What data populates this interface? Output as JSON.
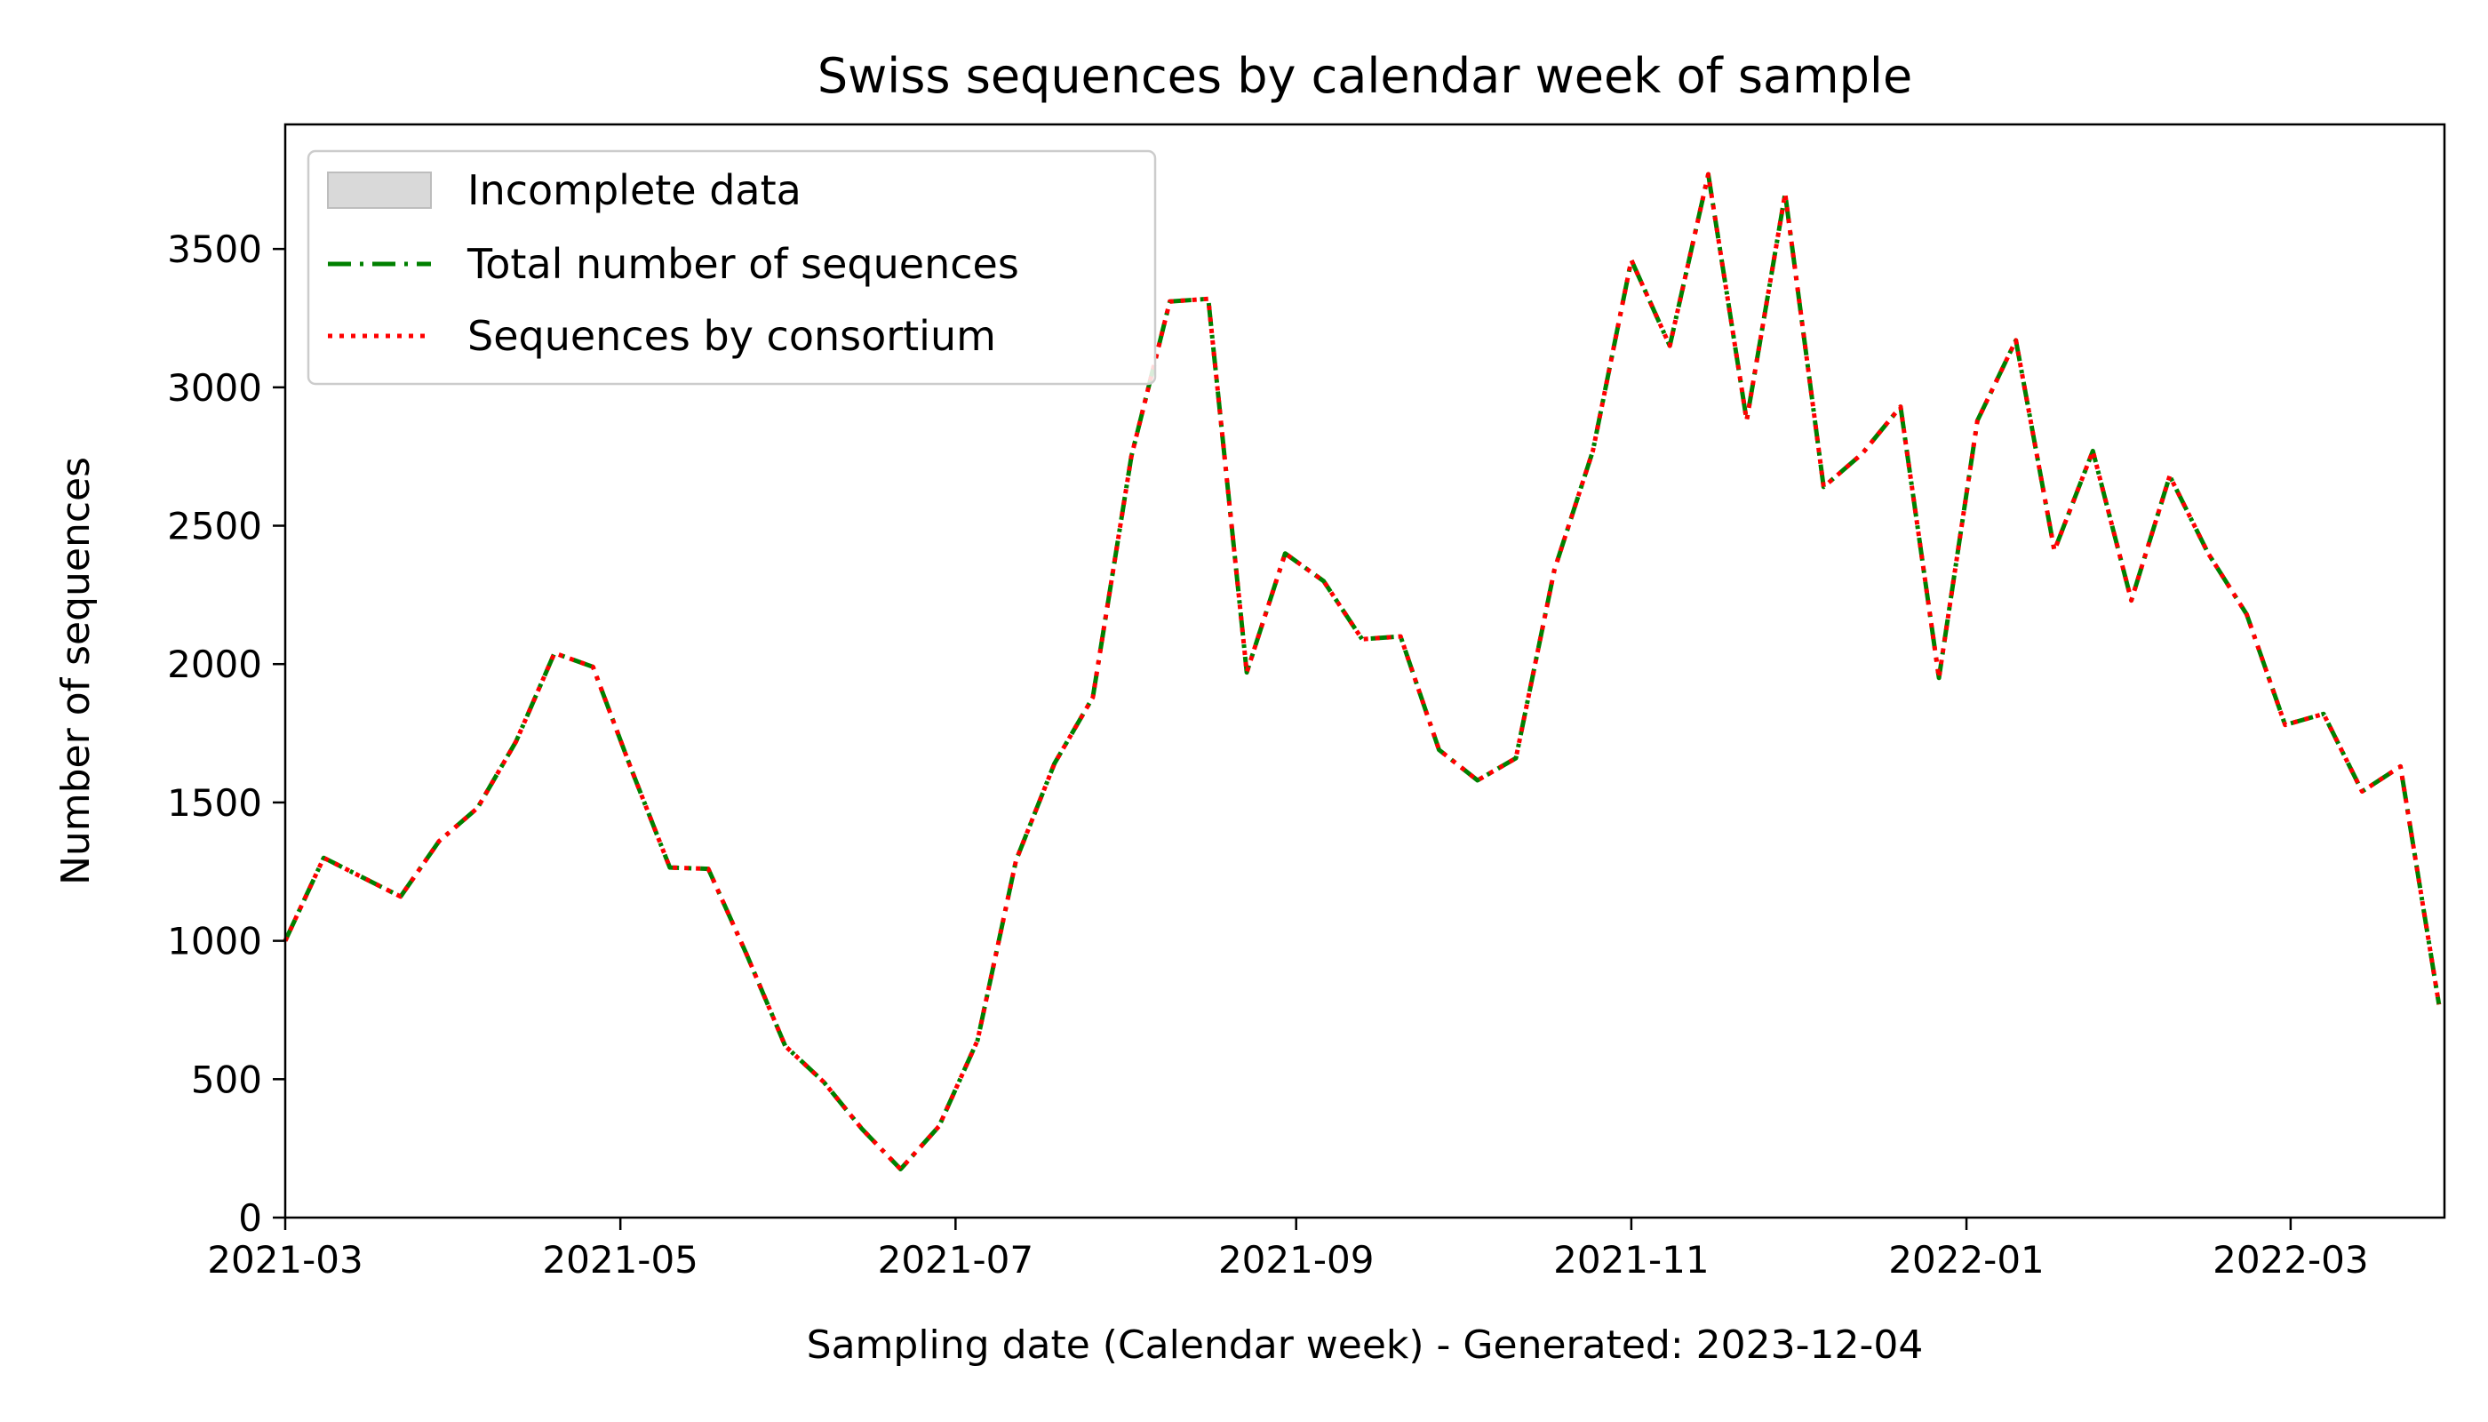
{
  "chart_data": {
    "type": "line",
    "title": "Swiss sequences by calendar week of sample",
    "xlabel": "Sampling date (Calendar week) - Generated: 2023-12-04",
    "ylabel": "Number of sequences",
    "x_start": "2021-03-01",
    "x_end": "2022-03-29",
    "ylim": [
      0,
      3950
    ],
    "x_ticks": [
      {
        "label": "2021-03",
        "date": "2021-03-01"
      },
      {
        "label": "2021-05",
        "date": "2021-05-01"
      },
      {
        "label": "2021-07",
        "date": "2021-07-01"
      },
      {
        "label": "2021-09",
        "date": "2021-09-01"
      },
      {
        "label": "2021-11",
        "date": "2021-11-01"
      },
      {
        "label": "2022-01",
        "date": "2022-01-01"
      },
      {
        "label": "2022-03",
        "date": "2022-03-01"
      }
    ],
    "y_ticks": [
      0,
      500,
      1000,
      1500,
      2000,
      2500,
      3000,
      3500
    ],
    "grid": false,
    "legend_position": "top-left",
    "legend": [
      {
        "label": "Incomplete data",
        "style": "patch",
        "color": "#d9d9d9"
      },
      {
        "label": "Total number of sequences",
        "style": "dashdot",
        "color": "#008000"
      },
      {
        "label": "Sequences by consortium",
        "style": "dotted",
        "color": "#ff0000"
      }
    ],
    "x": [
      "2021-03-01",
      "2021-03-08",
      "2021-03-15",
      "2021-03-22",
      "2021-03-29",
      "2021-04-05",
      "2021-04-12",
      "2021-04-19",
      "2021-04-26",
      "2021-05-03",
      "2021-05-10",
      "2021-05-17",
      "2021-05-24",
      "2021-05-31",
      "2021-06-07",
      "2021-06-14",
      "2021-06-21",
      "2021-06-28",
      "2021-07-05",
      "2021-07-12",
      "2021-07-19",
      "2021-07-26",
      "2021-08-02",
      "2021-08-09",
      "2021-08-16",
      "2021-08-23",
      "2021-08-30",
      "2021-09-06",
      "2021-09-13",
      "2021-09-20",
      "2021-09-27",
      "2021-10-04",
      "2021-10-11",
      "2021-10-18",
      "2021-10-25",
      "2021-11-01",
      "2021-11-08",
      "2021-11-15",
      "2021-11-22",
      "2021-11-29",
      "2021-12-06",
      "2021-12-13",
      "2021-12-20",
      "2021-12-27",
      "2022-01-03",
      "2022-01-10",
      "2022-01-17",
      "2022-01-24",
      "2022-01-31",
      "2022-02-07",
      "2022-02-14",
      "2022-02-21",
      "2022-02-28",
      "2022-03-07",
      "2022-03-14",
      "2022-03-21",
      "2022-03-28"
    ],
    "series": [
      {
        "name": "Total number of sequences",
        "color": "#008000",
        "values": [
          1000,
          1300,
          1230,
          1160,
          1360,
          1480,
          1720,
          2040,
          1990,
          1620,
          1265,
          1260,
          950,
          620,
          490,
          320,
          175,
          330,
          640,
          1290,
          1640,
          1880,
          2750,
          3310,
          3320,
          1970,
          2400,
          2300,
          2090,
          2100,
          1690,
          1580,
          1660,
          2340,
          2770,
          3460,
          3150,
          3770,
          2880,
          3700,
          2640,
          2760,
          2930,
          1950,
          2880,
          3170,
          2410,
          2770,
          2230,
          2680,
          2400,
          2180,
          1780,
          1820,
          1540,
          1630,
          770
        ]
      },
      {
        "name": "Sequences by consortium",
        "color": "#ff0000",
        "values": [
          1000,
          1300,
          1230,
          1160,
          1360,
          1480,
          1720,
          2040,
          1990,
          1620,
          1265,
          1260,
          950,
          620,
          490,
          320,
          175,
          330,
          640,
          1290,
          1640,
          1880,
          2750,
          3310,
          3320,
          1970,
          2400,
          2300,
          2090,
          2100,
          1690,
          1580,
          1660,
          2340,
          2770,
          3460,
          3150,
          3770,
          2880,
          3700,
          2640,
          2760,
          2930,
          1950,
          2880,
          3170,
          2410,
          2770,
          2230,
          2680,
          2400,
          2180,
          1780,
          1820,
          1540,
          1630,
          770
        ]
      }
    ]
  }
}
